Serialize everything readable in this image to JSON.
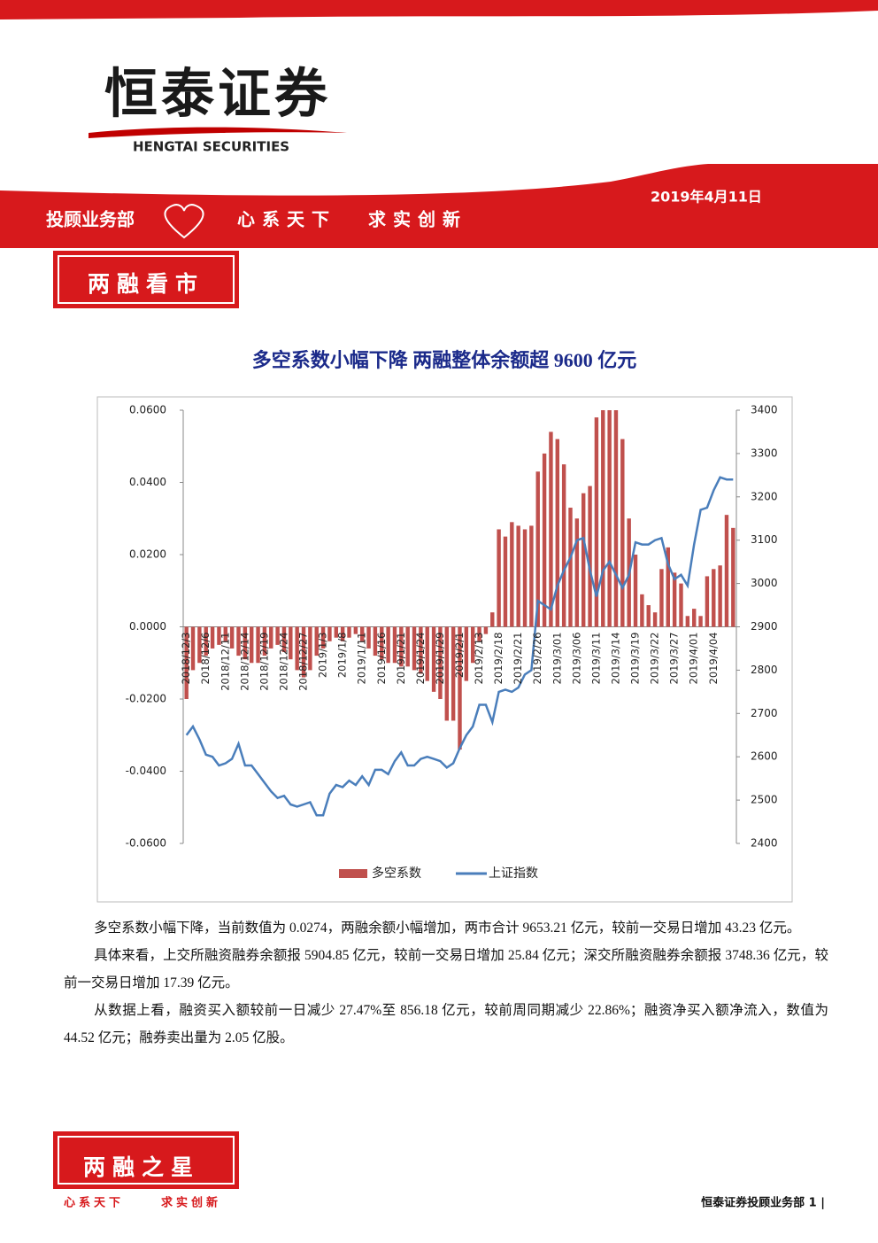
{
  "header": {
    "logo": "恒泰证券",
    "logo_en": "HENGTAI SECURITIES",
    "date": "2019年4月11日",
    "department": "投顾业务部",
    "slogan": [
      "心系天下",
      "求实创新"
    ]
  },
  "section_title": "两融看市",
  "chart_data": {
    "type": "bar_line",
    "title": "多空系数小幅下降  两融整体余额超 9600 亿元",
    "categories": [
      "2018/12/3",
      null,
      null,
      "2018/12/6",
      null,
      null,
      "2018/12/11",
      null,
      null,
      "2018/12/14",
      null,
      null,
      "2018/12/19",
      null,
      null,
      "2018/12/24",
      null,
      null,
      "2018/12/27",
      null,
      null,
      "2019/1/3",
      null,
      null,
      "2019/1/8",
      null,
      null,
      "2019/1/11",
      null,
      null,
      "2019/1/16",
      null,
      null,
      "2019/1/21",
      null,
      null,
      "2019/1/24",
      null,
      null,
      "2019/1/29",
      null,
      null,
      "2019/2/1",
      null,
      null,
      "2019/2/13",
      null,
      null,
      "2019/2/18",
      null,
      null,
      "2019/2/21",
      null,
      null,
      "2019/2/26",
      null,
      null,
      "2019/3/01",
      null,
      null,
      "2019/3/06",
      null,
      null,
      "2019/3/11",
      null,
      null,
      "2019/3/14",
      null,
      null,
      "2019/3/19",
      null,
      null,
      "2019/3/22",
      null,
      null,
      "2019/3/27",
      null,
      null,
      "2019/4/01",
      null,
      null,
      "2019/4/04",
      null,
      null,
      null
    ],
    "series": [
      {
        "name": "多空系数",
        "color": "#c0504d",
        "values": [
          -0.02,
          -0.012,
          -0.01,
          -0.008,
          -0.006,
          -0.005,
          -0.004,
          -0.006,
          -0.008,
          -0.009,
          -0.01,
          -0.01,
          -0.008,
          -0.006,
          -0.005,
          -0.007,
          -0.009,
          -0.012,
          -0.014,
          -0.012,
          -0.008,
          -0.006,
          -0.004,
          -0.003,
          -0.004,
          -0.003,
          -0.002,
          -0.004,
          -0.006,
          -0.008,
          -0.009,
          -0.01,
          -0.01,
          -0.011,
          -0.011,
          -0.012,
          -0.013,
          -0.015,
          -0.018,
          -0.02,
          -0.026,
          -0.026,
          -0.034,
          -0.015,
          -0.01,
          -0.004,
          -0.002,
          0.004,
          0.027,
          0.025,
          0.029,
          0.028,
          0.027,
          0.028,
          0.043,
          0.048,
          0.054,
          0.052,
          0.045,
          0.033,
          0.03,
          0.037,
          0.039,
          0.058,
          0.06,
          0.06,
          0.06,
          0.052,
          0.03,
          0.02,
          0.009,
          0.006,
          0.004,
          0.016,
          0.022,
          0.015,
          0.012,
          0.003,
          0.005,
          0.003,
          0.014,
          0.016,
          0.017,
          0.031,
          0.0274
        ]
      },
      {
        "name": "上证指数",
        "color": "#4a7ebb",
        "axis": "y2",
        "values": [
          2650,
          2670,
          2640,
          2605,
          2600,
          2580,
          2585,
          2595,
          2630,
          2580,
          2580,
          2560,
          2540,
          2520,
          2505,
          2510,
          2490,
          2485,
          2490,
          2495,
          2465,
          2465,
          2515,
          2535,
          2530,
          2545,
          2535,
          2555,
          2535,
          2570,
          2570,
          2560,
          2590,
          2610,
          2580,
          2580,
          2595,
          2600,
          2595,
          2590,
          2575,
          2585,
          2620,
          2650,
          2670,
          2720,
          2720,
          2680,
          2750,
          2755,
          2750,
          2760,
          2790,
          2800,
          2960,
          2950,
          2940,
          2995,
          3030,
          3060,
          3100,
          3105,
          3030,
          2970,
          3030,
          3050,
          3020,
          2990,
          3020,
          3095,
          3090,
          3090,
          3100,
          3105,
          3045,
          3010,
          3020,
          2995,
          3090,
          3170,
          3175,
          3215,
          3245,
          3240,
          3240
        ]
      }
    ],
    "ylim": [
      -0.06,
      0.06
    ],
    "yticks": [
      {
        "value": -0.06,
        "label": "-0.0600"
      },
      {
        "value": -0.04,
        "label": "-0.0400"
      },
      {
        "value": -0.02,
        "label": "-0.0200"
      },
      {
        "value": 0,
        "label": "0.0000"
      },
      {
        "value": 0.02,
        "label": "0.0200"
      },
      {
        "value": 0.04,
        "label": "0.0400"
      },
      {
        "value": 0.06,
        "label": "0.0600"
      }
    ],
    "y2lim": [
      2400,
      3400
    ],
    "y2ticks": [
      2400,
      2500,
      2600,
      2700,
      2800,
      2900,
      3000,
      3100,
      3200,
      3300,
      3400
    ]
  },
  "paragraphs": [
    "多空系数小幅下降，当前数值为 0.0274，两融余额小幅增加，两市合计 9653.21 亿元，较前一交易日增加 43.23 亿元。",
    "具体来看，上交所融资融券余额报 5904.85 亿元，较前一交易日增加 25.84 亿元；深交所融资融券余额报 3748.36 亿元，较前一交易日增加 17.39 亿元。",
    "从数据上看，融资买入额较前一日减少 27.47%至 856.18 亿元，较前周同期减少 22.86%；融资净买入额净流入，数值为 44.52 亿元；融券卖出量为 2.05 亿股。"
  ],
  "footer_section": "两融之星",
  "page_footer": "恒泰证券投顾业务部 1 |"
}
